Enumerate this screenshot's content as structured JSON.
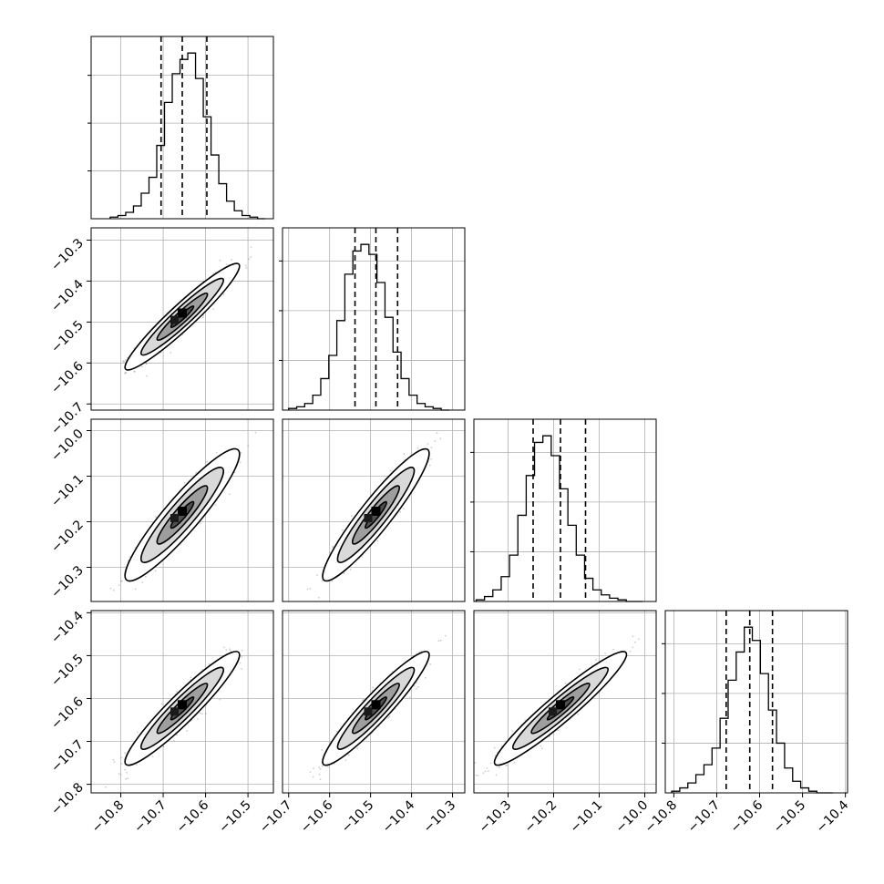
{
  "chart_data": {
    "type": "corner",
    "title": "",
    "grid": true,
    "n_params": 4,
    "colors": {
      "hist": "#000000",
      "points": "#6f6f6f",
      "grid": "#b0b0b0",
      "frame": "#000000"
    },
    "params": [
      {
        "index": 0,
        "xlim": [
          -10.87,
          -10.44
        ],
        "xticks": [
          "−10.8",
          "−10.7",
          "−10.6",
          "−10.5"
        ],
        "yticks": [],
        "quantiles": [
          -10.705,
          -10.655,
          -10.597
        ]
      },
      {
        "index": 1,
        "xlim": [
          -10.715,
          -10.27
        ],
        "xticks": [
          "−10.7",
          "−10.6",
          "−10.5",
          "−10.4",
          "−10.3"
        ],
        "yticks": [
          "−10.3",
          "−10.4",
          "−10.5",
          "−10.6",
          "−10.7"
        ],
        "quantiles": [
          -10.538,
          -10.487,
          -10.434
        ]
      },
      {
        "index": 2,
        "xlim": [
          -10.375,
          -9.975
        ],
        "xticks": [
          "−10.3",
          "−10.2",
          "−10.1",
          "−10.0"
        ],
        "yticks": [
          "−10.0",
          "−10.1",
          "−10.2",
          "−10.3"
        ],
        "quantiles": [
          -10.245,
          -10.185,
          -10.13
        ]
      },
      {
        "index": 3,
        "xlim": [
          -10.82,
          -10.395
        ],
        "xticks": [
          "−10.8",
          "−10.7",
          "−10.6",
          "−10.5",
          "−10.4"
        ],
        "yticks": [
          "−10.4",
          "−10.5",
          "−10.6",
          "−10.7",
          "−10.8"
        ],
        "quantiles": [
          -10.678,
          -10.623,
          -10.57
        ]
      }
    ],
    "histograms": [
      {
        "param": 0,
        "edges_start": -10.825,
        "bin_width": 0.0183,
        "counts": [
          1,
          2,
          4,
          8,
          16,
          26,
          46,
          73,
          91,
          100,
          104,
          88,
          64,
          40,
          22,
          11,
          5,
          2,
          1,
          0
        ]
      },
      {
        "param": 1,
        "edges_start": -10.7,
        "bin_width": 0.0196,
        "counts": [
          1,
          2,
          4,
          9,
          19,
          33,
          54,
          82,
          96,
          100,
          94,
          77,
          56,
          35,
          19,
          9,
          4,
          2,
          1,
          0
        ]
      },
      {
        "param": 2,
        "edges_start": -10.37,
        "bin_width": 0.0183,
        "counts": [
          1,
          3,
          7,
          15,
          28,
          52,
          76,
          96,
          100,
          88,
          68,
          46,
          28,
          14,
          7,
          4,
          2,
          1,
          0,
          0
        ]
      },
      {
        "param": 3,
        "edges_start": -10.805,
        "bin_width": 0.0188,
        "counts": [
          1,
          3,
          6,
          11,
          17,
          27,
          45,
          68,
          85,
          100,
          92,
          72,
          50,
          30,
          15,
          7,
          3,
          1,
          0,
          0
        ]
      }
    ],
    "joint": [
      {
        "row": 1,
        "col": 0,
        "mean": [
          -10.655,
          -10.487
        ],
        "std": [
          0.054,
          0.052
        ],
        "corr": 0.95
      },
      {
        "row": 2,
        "col": 0,
        "mean": [
          -10.655,
          -10.185
        ],
        "std": [
          0.054,
          0.058
        ],
        "corr": 0.92
      },
      {
        "row": 2,
        "col": 1,
        "mean": [
          -10.487,
          -10.185
        ],
        "std": [
          0.052,
          0.058
        ],
        "corr": 0.93
      },
      {
        "row": 3,
        "col": 0,
        "mean": [
          -10.655,
          -10.623
        ],
        "std": [
          0.054,
          0.053
        ],
        "corr": 0.94
      },
      {
        "row": 3,
        "col": 1,
        "mean": [
          -10.487,
          -10.623
        ],
        "std": [
          0.052,
          0.053
        ],
        "corr": 0.94
      },
      {
        "row": 3,
        "col": 2,
        "mean": [
          -10.185,
          -10.623
        ],
        "std": [
          0.058,
          0.053
        ],
        "corr": 0.95
      }
    ]
  }
}
